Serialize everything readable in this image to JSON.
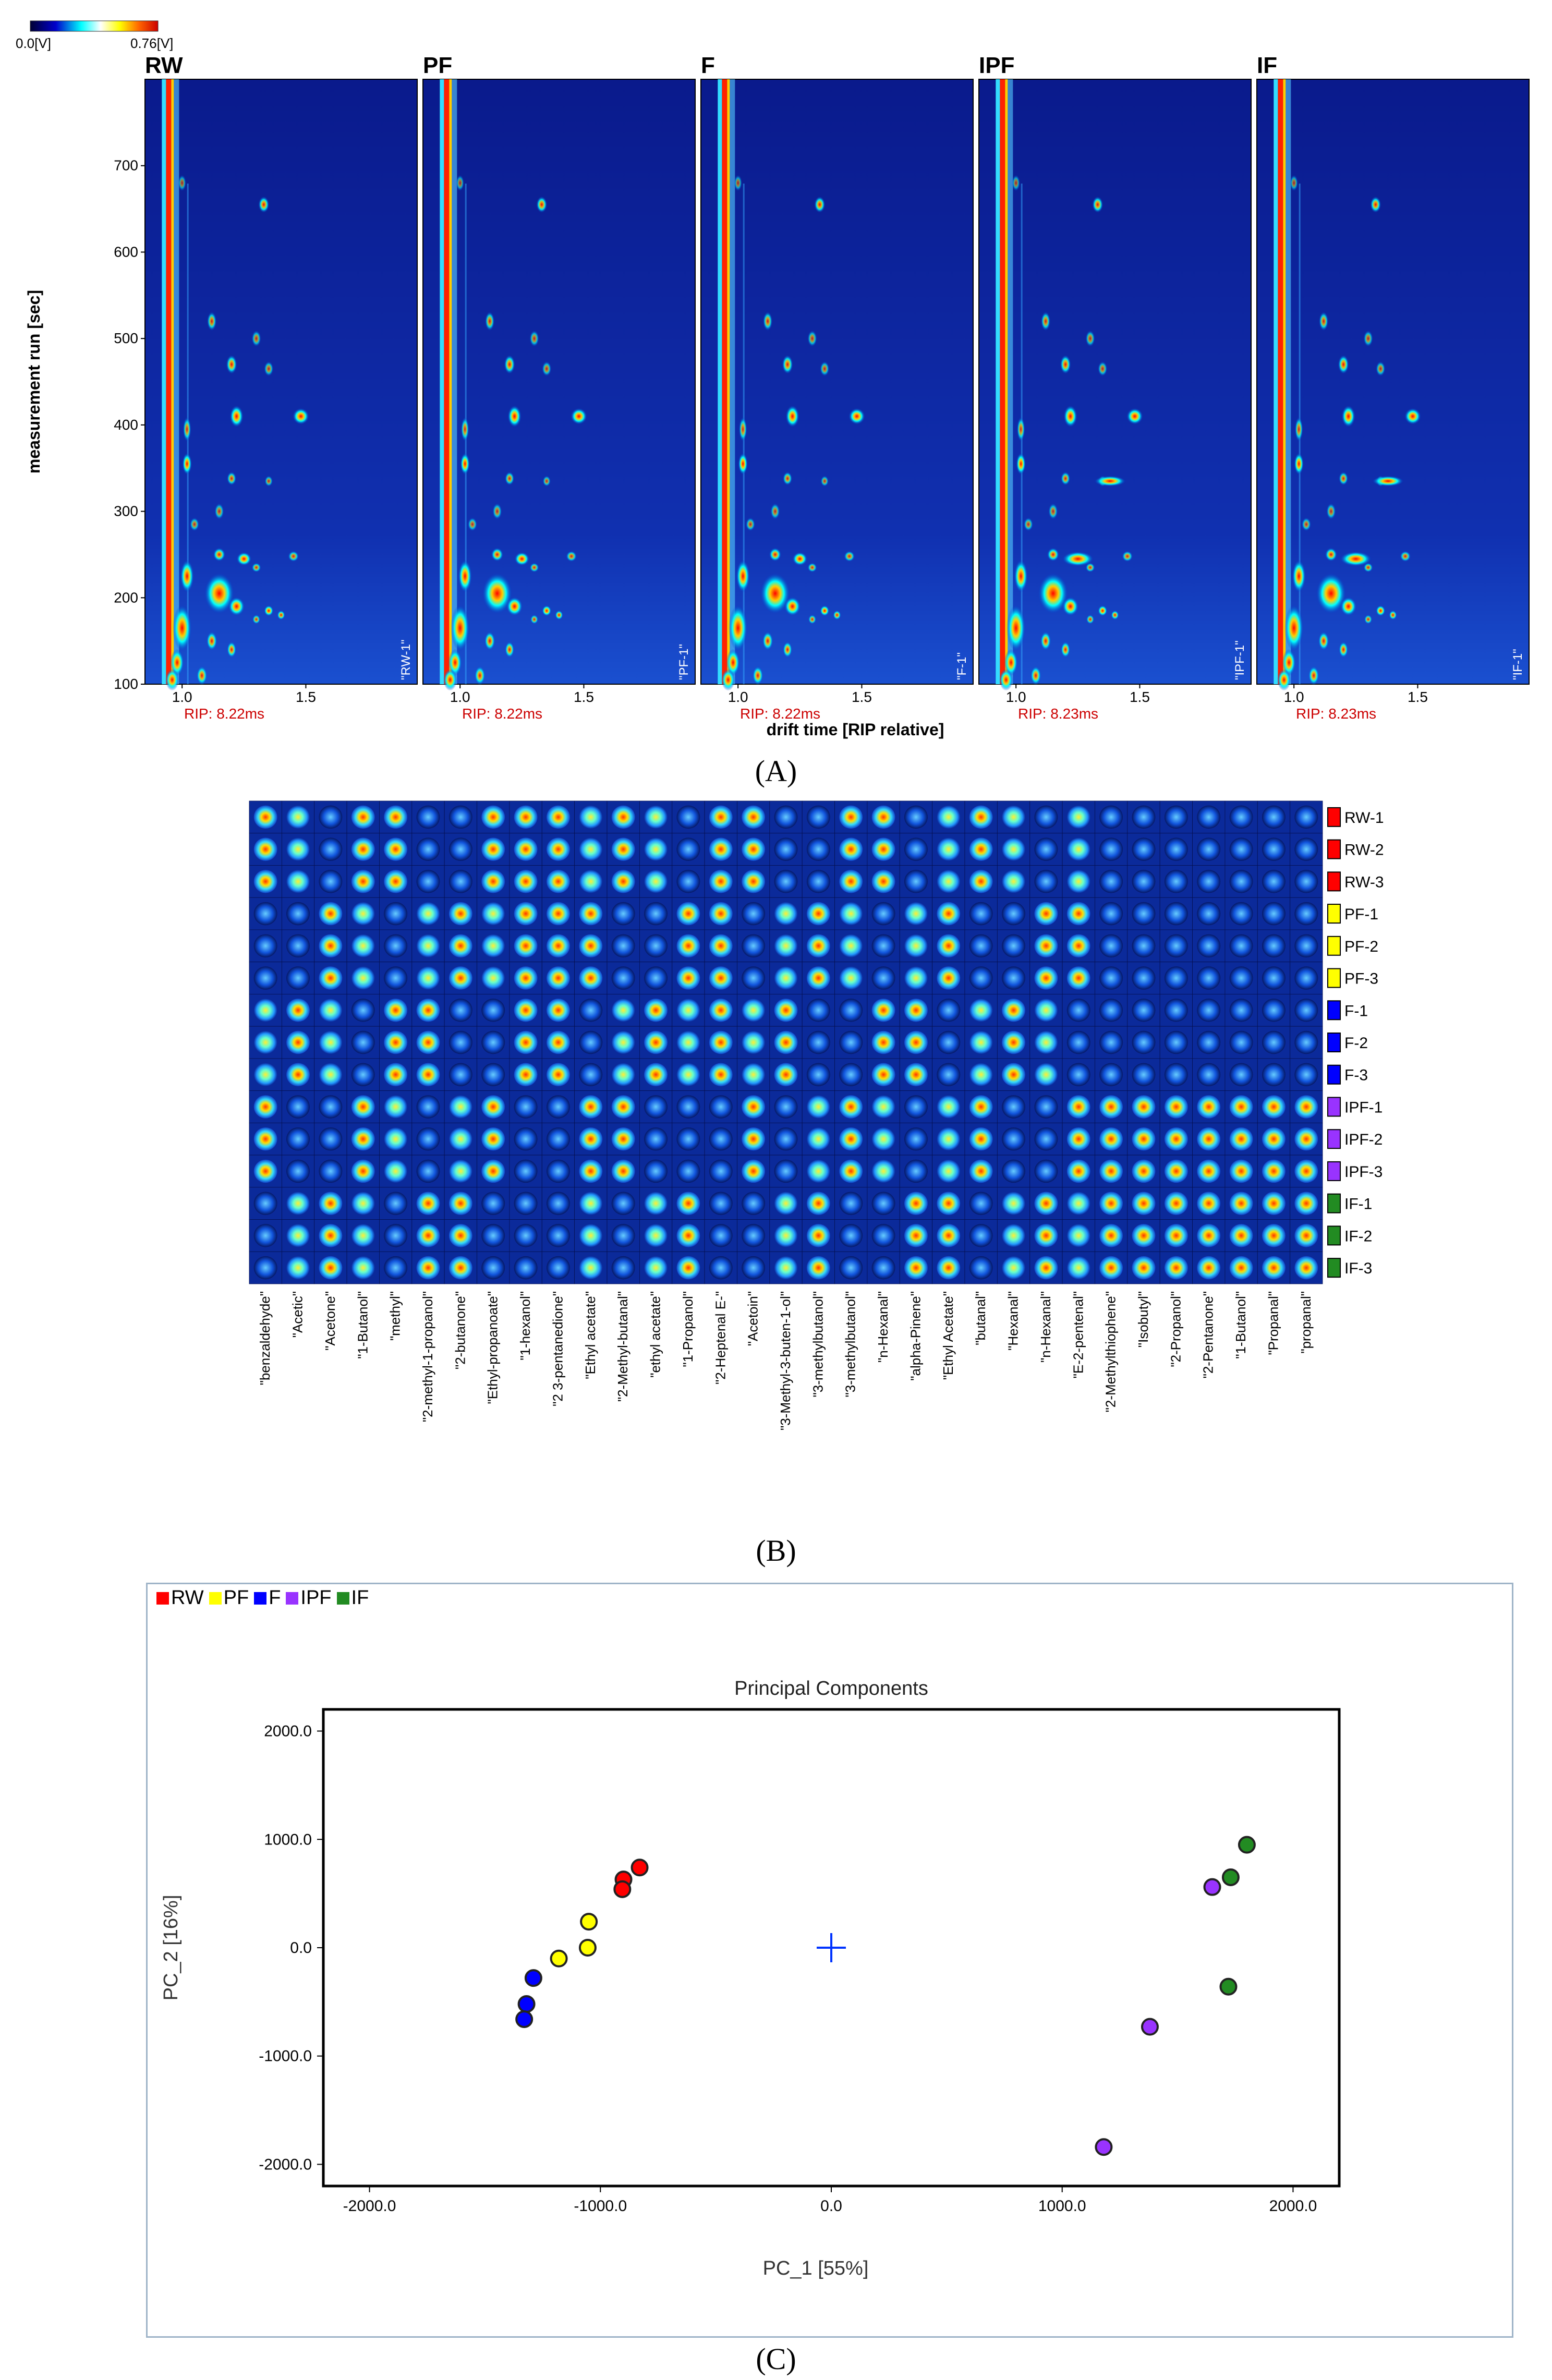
{
  "panel_a": {
    "colorbar": {
      "min_label": "0.0[V]",
      "max_label": "0.76[V]"
    },
    "ylabel": "measurement run [sec]",
    "xlabel": "drift time [RIP relative]",
    "yticks": [
      "100",
      "200",
      "300",
      "400",
      "500",
      "600",
      "700"
    ],
    "xticks": [
      "1.0",
      "1.5"
    ],
    "panels": [
      {
        "title": "RW",
        "sample": "\"RW-1\"",
        "rip": "RIP: 8.22ms"
      },
      {
        "title": "PF",
        "sample": "\"PF-1\"",
        "rip": "RIP: 8.22ms"
      },
      {
        "title": "F",
        "sample": "\"F-1\"",
        "rip": "RIP: 8.22ms"
      },
      {
        "title": "IPF",
        "sample": "\"IPF-1\"",
        "rip": "RIP: 8.23ms"
      },
      {
        "title": "IF",
        "sample": "\"IF-1\"",
        "rip": "RIP: 8.23ms"
      }
    ],
    "caption": "(A)"
  },
  "panel_b": {
    "rows": [
      "RW-1",
      "RW-2",
      "RW-3",
      "PF-1",
      "PF-2",
      "PF-3",
      "F-1",
      "F-2",
      "F-3",
      "IPF-1",
      "IPF-2",
      "IPF-3",
      "IF-1",
      "IF-2",
      "IF-3"
    ],
    "row_colors": [
      "#ff0000",
      "#ff0000",
      "#ff0000",
      "#ffff00",
      "#ffff00",
      "#ffff00",
      "#0000ff",
      "#0000ff",
      "#0000ff",
      "#9933ff",
      "#9933ff",
      "#9933ff",
      "#228b22",
      "#228b22",
      "#228b22"
    ],
    "columns": [
      "\"benzaldehyde\"",
      "\"Acetic\"",
      "\"Acetone\"",
      "\"1-Butanol\"",
      "\"methyl\"",
      "\"2-methyl-1-propanol\"",
      "\"2-butanone\"",
      "\"Ethyl-propanoate\"",
      "\"1-hexanol\"",
      "\"2 3-pentanedione\"",
      "\"Ethyl acetate\"",
      "\"2-Methyl-butanal\"",
      "\"ethyl acetate\"",
      "\"1-Propanol\"",
      "\"2-Heptenal E-\"",
      "\"Acetoin\"",
      "\"3-Methyl-3-buten-1-ol\"",
      "\"3-methylbutanol\"",
      "\"3-methylbutanol\"",
      "\"n-Hexanal\"",
      "\"alpha-Pinene\"",
      "\"Ethyl Acetate\"",
      "\"butanal\"",
      "\"Hexanal\"",
      "\"n-Hexanal\"",
      "\"E-2-pentenal\"",
      "\"2-Methylthiophene\"",
      "\"Isobutyl\"",
      "\"2-Propanol\"",
      "\"2-Pentanone\"",
      "\"1-Butanol\"",
      "\"Propanal\"",
      "\"propanal\""
    ],
    "caption": "(B)"
  },
  "panel_c": {
    "caption": "(C)",
    "legend": [
      {
        "label": "RW",
        "color": "#ff0000"
      },
      {
        "label": "PF",
        "color": "#ffff00"
      },
      {
        "label": "F",
        "color": "#0000ff"
      },
      {
        "label": "IPF",
        "color": "#9933ff"
      },
      {
        "label": "IF",
        "color": "#228b22"
      }
    ]
  },
  "chart_data": [
    {
      "type": "scatter",
      "title": "Principal Components",
      "xlabel": "PC_1 [55%]",
      "ylabel": "PC_2 [16%]",
      "xlim": [
        -2200,
        2200
      ],
      "ylim": [
        -2200,
        2200
      ],
      "xticks": [
        -2000,
        -1000,
        0,
        1000,
        2000
      ],
      "yticks": [
        -2000,
        -1000,
        0,
        1000,
        2000
      ],
      "xtick_labels": [
        "-2000.0",
        "-1000.0",
        "0.0",
        "1000.0",
        "2000.0"
      ],
      "ytick_labels": [
        "-2000.0",
        "-1000.0",
        "0.0",
        "1000.0",
        "2000.0"
      ],
      "origin_marker": [
        0,
        0
      ],
      "series": [
        {
          "name": "RW",
          "color": "#ff0000",
          "points": [
            [
              -900,
              630
            ],
            [
              -905,
              540
            ],
            [
              -830,
              740
            ]
          ]
        },
        {
          "name": "PF",
          "color": "#ffff00",
          "points": [
            [
              -1050,
              240
            ],
            [
              -1180,
              -100
            ],
            [
              -1055,
              0
            ]
          ]
        },
        {
          "name": "F",
          "color": "#0000ff",
          "points": [
            [
              -1290,
              -280
            ],
            [
              -1320,
              -520
            ],
            [
              -1330,
              -660
            ]
          ]
        },
        {
          "name": "IPF",
          "color": "#9933ff",
          "points": [
            [
              1650,
              560
            ],
            [
              1380,
              -730
            ],
            [
              1180,
              -1840
            ]
          ]
        },
        {
          "name": "IF",
          "color": "#228b22",
          "points": [
            [
              1800,
              950
            ],
            [
              1730,
              650
            ],
            [
              1720,
              -360
            ]
          ]
        }
      ]
    }
  ]
}
